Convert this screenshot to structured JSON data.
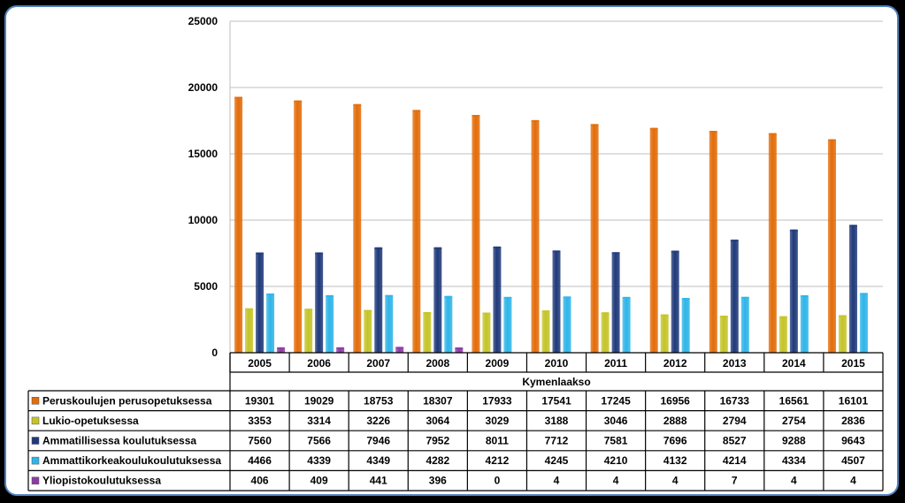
{
  "chart_data": {
    "type": "bar",
    "group_label": "Kymenlaakso",
    "categories": [
      "2005",
      "2006",
      "2007",
      "2008",
      "2009",
      "2010",
      "2011",
      "2012",
      "2013",
      "2014",
      "2015"
    ],
    "ylim": [
      0,
      25000
    ],
    "yticks": [
      0,
      5000,
      10000,
      15000,
      20000,
      25000
    ],
    "grid": true,
    "series": [
      {
        "name": "Peruskoulujen perusopetuksessa",
        "color": "#e36c09",
        "values": [
          19301,
          19029,
          18753,
          18307,
          17933,
          17541,
          17245,
          16956,
          16733,
          16561,
          16101
        ]
      },
      {
        "name": "Lukio-opetuksessa",
        "color": "#c4c428",
        "values": [
          3353,
          3314,
          3226,
          3064,
          3029,
          3188,
          3046,
          2888,
          2794,
          2754,
          2836
        ]
      },
      {
        "name": "Ammatillisessa koulutuksessa",
        "color": "#1f3a7a",
        "values": [
          7560,
          7566,
          7946,
          7952,
          8011,
          7712,
          7581,
          7696,
          8527,
          9288,
          9643
        ]
      },
      {
        "name": "Ammattikorkeakoulukoulutuksessa",
        "color": "#2eb5e8",
        "values": [
          4466,
          4339,
          4349,
          4282,
          4212,
          4245,
          4210,
          4132,
          4214,
          4334,
          4507
        ]
      },
      {
        "name": "Yliopistokoulutuksessa",
        "color": "#8c3ba5",
        "values": [
          406,
          409,
          441,
          396,
          0,
          4,
          4,
          4,
          7,
          4,
          4
        ]
      }
    ]
  }
}
